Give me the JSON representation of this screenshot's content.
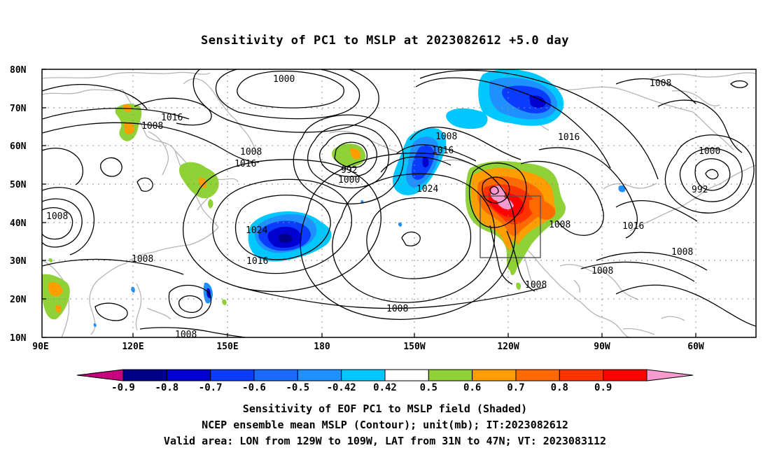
{
  "title": "Sensitivity of PC1 to MSLP at 2023082612 +5.0 day",
  "map": {
    "lat_labels": [
      "80N",
      "70N",
      "60N",
      "50N",
      "40N",
      "30N",
      "20N",
      "10N"
    ],
    "lon_labels": [
      "90E",
      "120E",
      "150E",
      "180",
      "150W",
      "120W",
      "90W",
      "60W"
    ],
    "contour_labels": [
      {
        "text": "1000"
      },
      {
        "text": "1008"
      },
      {
        "text": "1016"
      },
      {
        "text": "1008"
      },
      {
        "text": "1008"
      },
      {
        "text": "1016"
      },
      {
        "text": "992"
      },
      {
        "text": "1000"
      },
      {
        "text": "1008"
      },
      {
        "text": "1016"
      },
      {
        "text": "1024"
      },
      {
        "text": "1008"
      },
      {
        "text": "1024"
      },
      {
        "text": "1016"
      },
      {
        "text": "1008"
      },
      {
        "text": "1016"
      },
      {
        "text": "1008"
      },
      {
        "text": "1016"
      },
      {
        "text": "1008"
      },
      {
        "text": "1008"
      },
      {
        "text": "1000"
      },
      {
        "text": "992"
      },
      {
        "text": "1008"
      },
      {
        "text": "1008"
      },
      {
        "text": "1008"
      }
    ],
    "contour_interval_mb": 8,
    "valid_box": {
      "lon_from": "129W",
      "lon_to": "109W",
      "lat_from": "31N",
      "lat_to": "47N"
    }
  },
  "colorbar": {
    "labels": [
      "-0.9",
      "-0.8",
      "-0.7",
      "-0.6",
      "-0.5",
      "-0.42",
      "0.42",
      "0.5",
      "0.6",
      "0.7",
      "0.8",
      "0.9"
    ],
    "colors": [
      "#c6007f",
      "#00008a",
      "#0000d0",
      "#0a3cff",
      "#1c6bff",
      "#1e90ff",
      "#00c8ff",
      "#ffffff",
      "#8fd136",
      "#ff9e00",
      "#ff6a00",
      "#ff3300",
      "#ff0000",
      "#f59bcf"
    ]
  },
  "captions": {
    "line1": "Sensitivity of EOF PC1 to MSLP field (Shaded)",
    "line2": "NCEP ensemble mean MSLP (Contour); unit(mb); IT:2023082612",
    "line3": "Valid area: LON from 129W to 109W, LAT from 31N to 47N; VT: 2023083112"
  }
}
